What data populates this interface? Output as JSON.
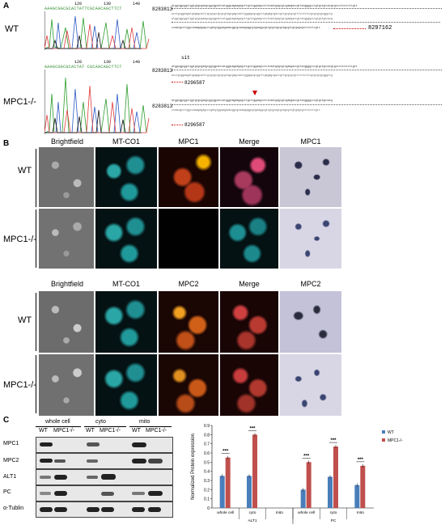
{
  "panelA": {
    "letter": "A",
    "wt_label": "WT",
    "ko_label": "MPC1-/-",
    "wt_seq_header": "AAAGCGGCGCACTATTCGCAACAGCTTCT",
    "ko_seq_header": "AAAGCGGCGCACTAT CGCAACAGCTTCT",
    "wt_ticks": [
      "120",
      "130",
      "140"
    ],
    "ko_ticks": [
      "120",
      "130",
      "140"
    ],
    "wt_start": "8283813",
    "wt_end": "8297162",
    "ko_start1": "8283813",
    "ko_end1": "8296587",
    "ko_start2": "8283813",
    "ko_end2": "8296587",
    "sgrna_marker": "sit",
    "seq_line1": "atggcggcggctggtgcgcgaagcggcggcatcatgggcagaagagcttgctcggaagcctctcaatgagcgtcgaagaccgttacggggcccgtgctgccacgtgcccttcctcttgtt",
    "seq_line2": "acctgcggaagatgagagcatttgcgcgccgcgcgcagcgagcaactgggagcgcggcttgagagcgaccgttgcgcgcgtttcctctccgcgcgcgcgggctg",
    "seq_line3": "atggcggcggctggtgcgcgaagcggcggcatcatgggcagaagagcttgctcggaagcctctcaatgagcgtcgaagaccgttacggggcccgtgctgccacg",
    "seq_line4": "ccaacgccttggccaaagagagcccgatgtggaagaaacggcgcaaagaggcgtgaaggcgtcgcgcagcgcagcgtcgtgagcgccttcctcgtc"
  },
  "panelB": {
    "letter": "B",
    "set1": {
      "cols": [
        "Brightfield",
        "MT-CO1",
        "MPC1",
        "Merge",
        "MPC1"
      ],
      "rows": [
        "WT",
        "MPC1-/-"
      ]
    },
    "set2": {
      "cols": [
        "Brightfield",
        "MT-CO1",
        "MPC2",
        "Merge",
        "MPC2"
      ],
      "rows": [
        "WT",
        "MPC1-/-"
      ]
    }
  },
  "panelC": {
    "letter": "C",
    "groups": [
      "whole cell",
      "cyto",
      "mito"
    ],
    "lane_labels": [
      "WT",
      "MPC1-/-",
      "WT",
      "MPC1-/-",
      "WT",
      "MPC1-/-"
    ],
    "blot_rows": [
      "MPC1",
      "MPC2",
      "ALT1",
      "PC",
      "α-Tublin"
    ]
  },
  "chart_data": {
    "type": "bar",
    "ylabel": "Normalized Protein expression",
    "ylim": [
      0,
      0.9
    ],
    "yticks": [
      "0",
      "0.1",
      "0.2",
      "0.3",
      "0.4",
      "0.5",
      "0.6",
      "0.7",
      "0.8",
      "0.9"
    ],
    "categories": [
      "whole cell",
      "cyto",
      "mito",
      "whole cell",
      "cyto",
      "mito"
    ],
    "group_labels": [
      "ALT1",
      "PC"
    ],
    "series": [
      {
        "name": "WT",
        "color": "#4a7ebb",
        "values": [
          0.35,
          0.35,
          0,
          0.2,
          0.34,
          0.25
        ]
      },
      {
        "name": "MPC1-/-",
        "color": "#c0504d",
        "values": [
          0.55,
          0.8,
          0,
          0.5,
          0.67,
          0.46
        ]
      }
    ],
    "significance": [
      "***",
      "***",
      "",
      "***",
      "***",
      "***"
    ],
    "legend_position": "top-right"
  }
}
